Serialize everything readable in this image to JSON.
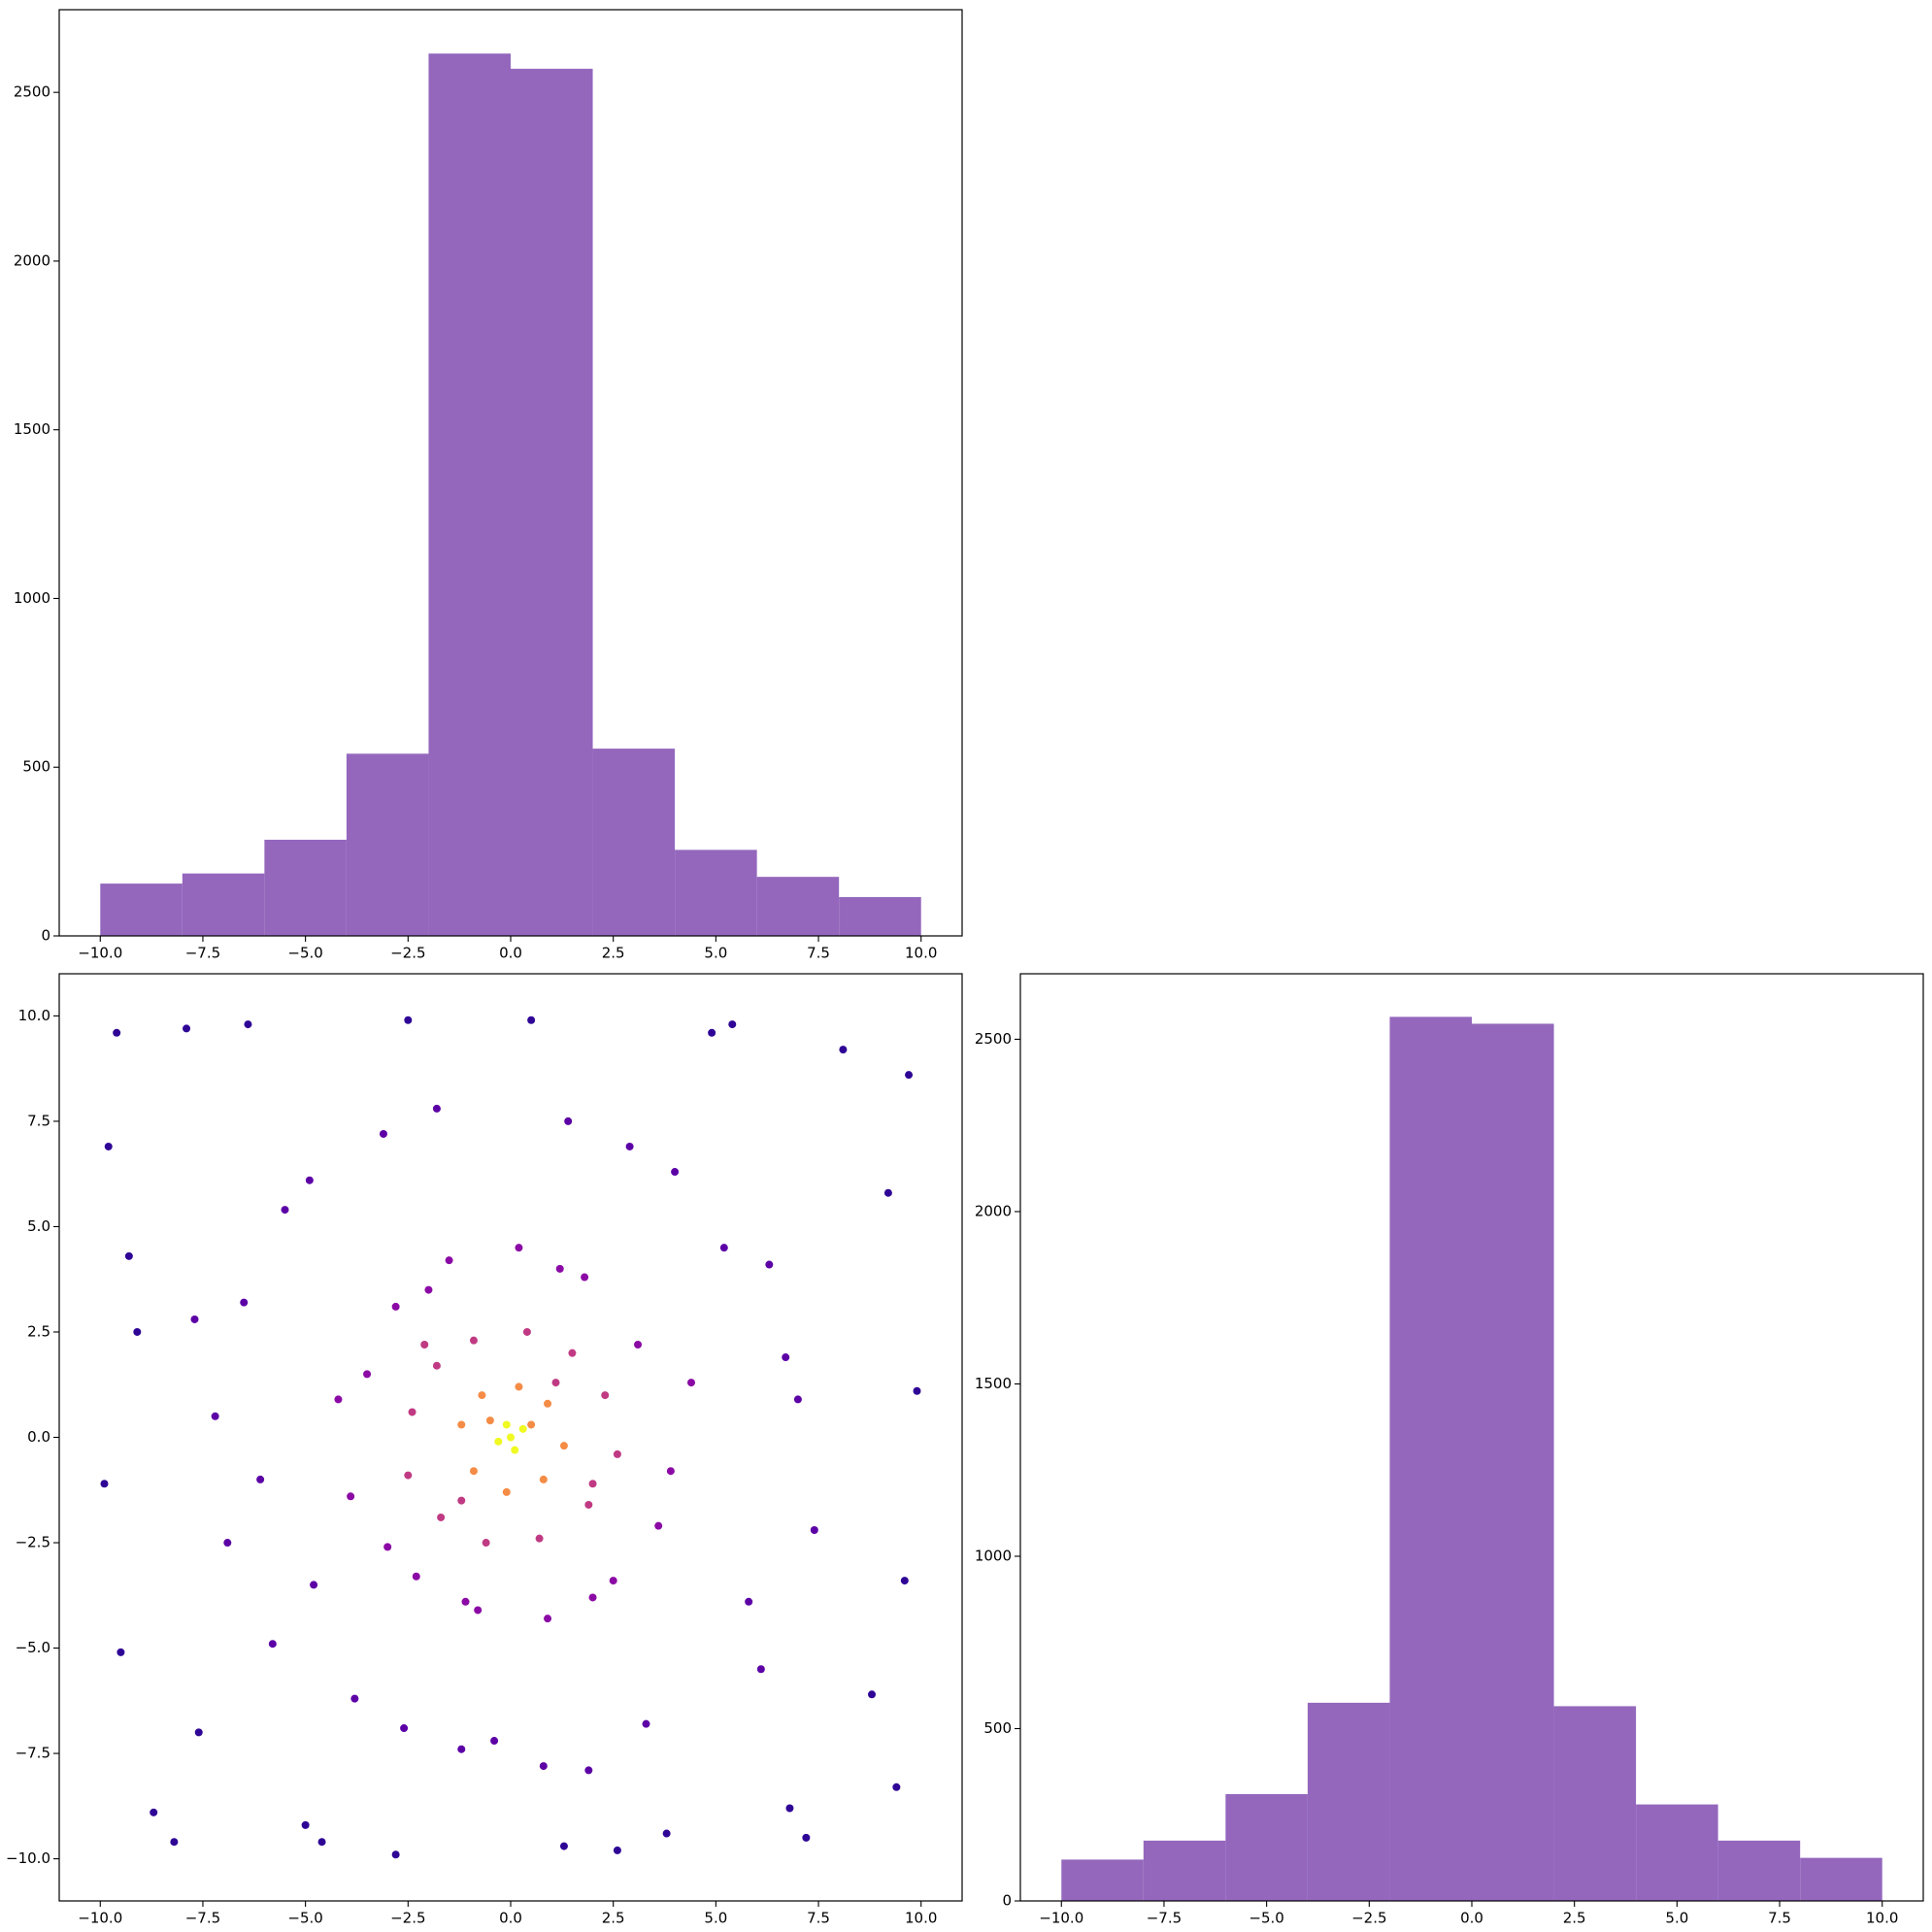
{
  "chart_data": [
    {
      "type": "histogram",
      "color": "#9467bd",
      "bins": [
        -10,
        -8,
        -6,
        -4,
        -2,
        0,
        2,
        4,
        6,
        8,
        10
      ],
      "counts": [
        155,
        185,
        285,
        540,
        2615,
        2570,
        555,
        255,
        175,
        115
      ],
      "xlim": [
        -11,
        11
      ],
      "ylim": [
        0,
        2745
      ],
      "xticks": [
        {
          "value": -10,
          "label": "−10.0"
        },
        {
          "value": -7.5,
          "label": "−7.5"
        },
        {
          "value": -5,
          "label": "−5.0"
        },
        {
          "value": -2.5,
          "label": "−2.5"
        },
        {
          "value": 0,
          "label": "0.0"
        },
        {
          "value": 2.5,
          "label": "2.5"
        },
        {
          "value": 5,
          "label": "5.0"
        },
        {
          "value": 7.5,
          "label": "7.5"
        },
        {
          "value": 10,
          "label": "10.0"
        }
      ],
      "yticks": [
        0,
        500,
        1000,
        1500,
        2000,
        2500
      ]
    },
    {
      "type": "scatter",
      "colormap": "plasma",
      "xlim": [
        -11,
        11
      ],
      "ylim": [
        -11,
        11
      ],
      "xticks": [
        {
          "value": -10,
          "label": "−10.0"
        },
        {
          "value": -7.5,
          "label": "−7.5"
        },
        {
          "value": -5,
          "label": "−5.0"
        },
        {
          "value": -2.5,
          "label": "−2.5"
        },
        {
          "value": 0,
          "label": "0.0"
        },
        {
          "value": 2.5,
          "label": "2.5"
        },
        {
          "value": 5,
          "label": "5.0"
        },
        {
          "value": 7.5,
          "label": "7.5"
        },
        {
          "value": 10,
          "label": "10.0"
        }
      ],
      "yticks": [
        {
          "value": -10,
          "label": "−10.0"
        },
        {
          "value": -7.5,
          "label": "−7.5"
        },
        {
          "value": -5,
          "label": "−5.0"
        },
        {
          "value": -2.5,
          "label": "−2.5"
        },
        {
          "value": 0,
          "label": "0.0"
        },
        {
          "value": 2.5,
          "label": "2.5"
        },
        {
          "value": 5,
          "label": "5.0"
        },
        {
          "value": 7.5,
          "label": "7.5"
        },
        {
          "value": 10,
          "label": "10.0"
        }
      ],
      "series": [
        {
          "color": "#2f0596",
          "x": [
            -9.8,
            -9.5,
            -9.1,
            -8.7,
            -9.6,
            -8.2,
            -9.9,
            -9.3,
            9.7,
            9.4,
            9.9,
            8.8,
            9.2,
            9.6,
            -7.9,
            -6.4,
            -4.6,
            -2.5,
            1.3,
            3.8,
            5.4,
            7.2,
            8.1,
            -7.6,
            -5.0,
            -2.8,
            0.5,
            2.6,
            4.9,
            6.8
          ],
          "y": [
            6.9,
            -5.1,
            2.5,
            -8.9,
            9.6,
            -9.6,
            -1.1,
            4.3,
            8.6,
            -8.3,
            1.1,
            -6.1,
            5.8,
            -3.4,
            9.7,
            9.8,
            -9.6,
            9.9,
            -9.7,
            -9.4,
            9.8,
            -9.5,
            9.2,
            -7.0,
            -9.2,
            -9.9,
            9.9,
            -9.8,
            9.6,
            -8.8
          ]
        },
        {
          "color": "#5c01a6",
          "x": [
            -6.5,
            -5.8,
            -7.2,
            -4.9,
            -3.1,
            -1.2,
            1.4,
            3.3,
            5.2,
            6.7,
            7.4,
            6.1,
            4.0,
            1.9,
            -0.4,
            -2.6,
            -4.8,
            -6.9,
            -7.7,
            -5.5,
            5.8,
            7.0,
            -3.8,
            2.9,
            -1.8,
            0.8,
            6.3,
            -6.1
          ],
          "y": [
            3.2,
            -4.9,
            0.5,
            6.1,
            7.2,
            -7.4,
            7.5,
            -6.8,
            4.5,
            1.9,
            -2.2,
            -5.5,
            6.3,
            -7.9,
            -7.2,
            -6.9,
            -3.5,
            -2.5,
            2.8,
            5.4,
            -3.9,
            0.9,
            -6.2,
            6.9,
            7.8,
            -7.8,
            4.1,
            -1.0
          ]
        },
        {
          "color": "#8b0aa5",
          "x": [
            -3.5,
            -2.8,
            -1.5,
            0.2,
            1.8,
            3.1,
            3.9,
            2.5,
            0.9,
            -0.8,
            -2.3,
            -3.9,
            -4.2,
            4.4,
            -1.1,
            1.2,
            3.6,
            -3.0,
            2.0,
            -2.0
          ],
          "y": [
            1.5,
            3.1,
            4.2,
            4.5,
            3.8,
            2.2,
            -0.8,
            -3.4,
            -4.3,
            -4.1,
            -3.3,
            -1.4,
            0.9,
            1.3,
            -3.9,
            4.0,
            -2.1,
            -2.6,
            -3.8,
            3.5
          ]
        },
        {
          "color": "#c03a83",
          "x": [
            -2.4,
            -1.8,
            -0.9,
            0.4,
            1.5,
            2.3,
            2.6,
            1.9,
            0.7,
            -0.6,
            -1.7,
            -2.5,
            -1.2,
            1.1,
            2.0,
            -2.1
          ],
          "y": [
            0.6,
            1.7,
            2.3,
            2.5,
            2.0,
            1.0,
            -0.4,
            -1.6,
            -2.4,
            -2.5,
            -1.9,
            -0.9,
            -1.5,
            1.3,
            -1.1,
            2.2
          ]
        },
        {
          "color": "#f58c46",
          "x": [
            -1.2,
            -0.7,
            0.2,
            0.9,
            1.3,
            0.8,
            -0.1,
            -0.9,
            -0.5,
            0.5
          ],
          "y": [
            0.3,
            1.0,
            1.2,
            0.8,
            -0.2,
            -1.0,
            -1.3,
            -0.8,
            0.4,
            0.3
          ]
        },
        {
          "color": "#f0f921",
          "x": [
            0,
            0.3,
            -0.3,
            0.1,
            -0.1
          ],
          "y": [
            0,
            0.2,
            -0.1,
            -0.3,
            0.3
          ]
        }
      ]
    },
    {
      "type": "histogram",
      "color": "#9467bd",
      "bins": [
        -10,
        -8,
        -6,
        -4,
        -2,
        0,
        2,
        4,
        6,
        8,
        10
      ],
      "counts": [
        120,
        175,
        310,
        575,
        2565,
        2545,
        565,
        280,
        175,
        125
      ],
      "xlim": [
        -11,
        11
      ],
      "ylim": [
        0,
        2690
      ],
      "xticks": [
        {
          "value": -10,
          "label": "−10.0"
        },
        {
          "value": -7.5,
          "label": "−7.5"
        },
        {
          "value": -5,
          "label": "−5.0"
        },
        {
          "value": -2.5,
          "label": "−2.5"
        },
        {
          "value": 0,
          "label": "0.0"
        },
        {
          "value": 2.5,
          "label": "2.5"
        },
        {
          "value": 5,
          "label": "5.0"
        },
        {
          "value": 7.5,
          "label": "7.5"
        },
        {
          "value": 10,
          "label": "10.0"
        }
      ],
      "yticks": [
        0,
        500,
        1000,
        1500,
        2000,
        2500
      ]
    }
  ]
}
